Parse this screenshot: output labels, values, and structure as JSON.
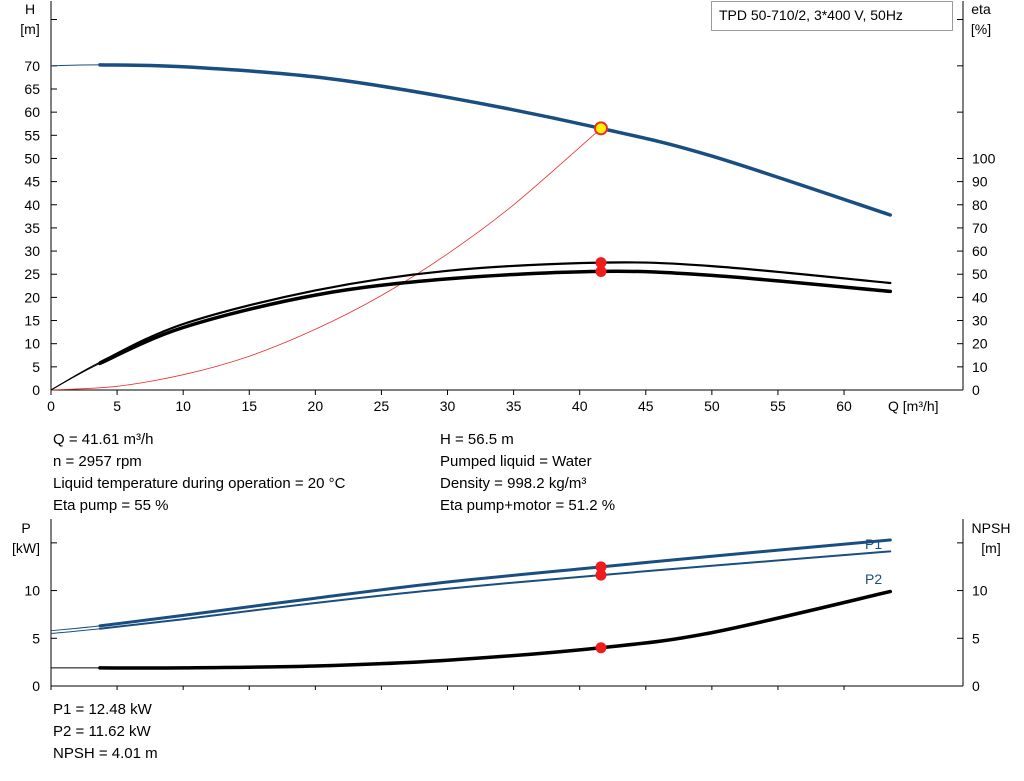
{
  "chart_data": [
    {
      "type": "line",
      "title": "TPD 50-710/2, 3*400 V, 50Hz",
      "xlabel": "Q [m³/h]",
      "ylabel_left": {
        "symbol": "H",
        "unit": "[m]"
      },
      "ylabel_right": {
        "symbol": "eta",
        "unit": "[%]"
      },
      "x_ticks": [
        0,
        5,
        10,
        15,
        20,
        25,
        30,
        35,
        40,
        45,
        50,
        55,
        60
      ],
      "y_left_ticks": [
        0,
        5,
        10,
        15,
        20,
        25,
        30,
        35,
        40,
        45,
        50,
        55,
        60,
        65,
        70
      ],
      "y_right_ticks": [
        0,
        10,
        20,
        30,
        40,
        50,
        60,
        70,
        80,
        90,
        100
      ],
      "xlim": [
        0,
        69
      ],
      "ylim_left": [
        0,
        84
      ],
      "ylim_right": [
        0,
        168
      ],
      "series": [
        {
          "role": "head",
          "axis": "left",
          "color": "#1a4e80",
          "x": [
            0,
            3.7,
            10,
            20,
            30,
            41.61,
            50,
            63.5
          ],
          "y": [
            70,
            70.2,
            69.8,
            67.6,
            63.2,
            56.5,
            50.5,
            37.8
          ]
        },
        {
          "role": "system-curve",
          "axis": "left",
          "color": "#e8302a",
          "x": [
            0,
            5,
            10,
            15,
            20,
            25,
            30,
            35,
            41.61
          ],
          "y": [
            0,
            0.8,
            3.3,
            7.3,
            13.1,
            20.4,
            29.4,
            40,
            56.5
          ]
        },
        {
          "role": "eta-pump-motor",
          "axis": "right",
          "color": "#000000",
          "x": [
            0,
            3.7,
            10,
            20,
            30,
            41.61,
            50,
            63.5
          ],
          "y": [
            0,
            11.5,
            27,
            41,
            48,
            51.2,
            49.5,
            42.6
          ]
        },
        {
          "role": "eta-pump",
          "axis": "right",
          "color": "#000000",
          "x": [
            0,
            3.7,
            10,
            20,
            30,
            41.61,
            50,
            63.5
          ],
          "y": [
            0,
            12,
            28.5,
            43,
            51.5,
            55,
            53.5,
            46.2
          ]
        }
      ],
      "operating_point": {
        "x": 41.61,
        "head": 56.5,
        "eta_pump": 55,
        "eta_pump_motor": 51.2
      }
    },
    {
      "type": "line",
      "ylabel_left": {
        "symbol": "P",
        "unit": "[kW]"
      },
      "ylabel_right": {
        "symbol": "NPSH",
        "unit": "[m]"
      },
      "xlim": [
        0,
        69
      ],
      "y_left_ticks": [
        0,
        5,
        10
      ],
      "y_right_ticks": [
        0,
        5,
        10
      ],
      "ylim": [
        0,
        17.5
      ],
      "series": [
        {
          "name": "P1",
          "axis": "left",
          "color": "#1a4e80",
          "x": [
            0,
            3.7,
            10,
            20,
            30,
            41.61,
            50,
            63.5
          ],
          "y": [
            5.8,
            6.3,
            7.4,
            9.2,
            10.9,
            12.48,
            13.6,
            15.3
          ]
        },
        {
          "name": "P2",
          "axis": "left",
          "color": "#1a4e80",
          "x": [
            0,
            3.7,
            10,
            20,
            30,
            41.61,
            50,
            63.5
          ],
          "y": [
            5.5,
            6.0,
            7.0,
            8.7,
            10.2,
            11.62,
            12.6,
            14.1
          ]
        },
        {
          "role": "npsh",
          "axis": "right",
          "color": "#000000",
          "x": [
            0,
            3.7,
            10,
            20,
            30,
            41.61,
            50,
            63.5
          ],
          "y": [
            1.9,
            1.9,
            1.9,
            2.1,
            2.7,
            4.01,
            5.6,
            9.9
          ]
        }
      ],
      "operating_point": {
        "x": 41.61,
        "P1": 12.48,
        "P2": 11.62,
        "NPSH": 4.01
      }
    }
  ],
  "info_top_left": [
    "Q = 41.61 m³/h",
    "n = 2957 rpm",
    "Liquid temperature during operation = 20 °C",
    "Eta pump = 55 %"
  ],
  "info_top_right": [
    "H = 56.5 m",
    "Pumped liquid = Water",
    "Density = 998.2 kg/m³",
    "Eta pump+motor = 51.2 %"
  ],
  "info_bottom": [
    "P1 = 12.48 kW",
    "P2 = 11.62 kW",
    "NPSH = 4.01 m"
  ]
}
